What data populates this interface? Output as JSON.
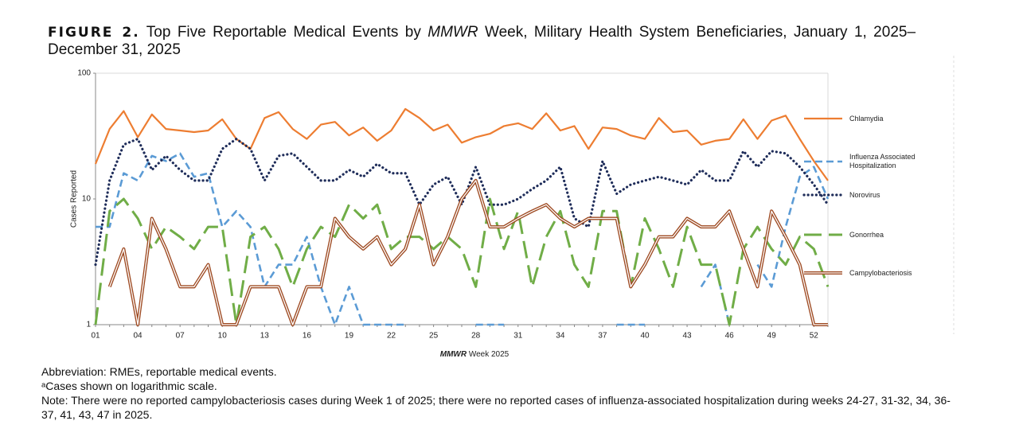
{
  "chart_data": {
    "type": "line",
    "title": [
      "FIGURE 2.",
      "Top Five Reportable Medical Events by ",
      "MMWR",
      " Week, Military Health System Beneficiaries, January 1, 2025– December 31, 2025"
    ],
    "x_label": [
      "MMWR",
      " Week  2025"
    ],
    "y_label": "Cases Reported",
    "categories": [
      "01",
      null,
      null,
      "04",
      null,
      null,
      "07",
      null,
      null,
      "10",
      null,
      null,
      "13",
      null,
      null,
      "16",
      null,
      null,
      "19",
      null,
      null,
      "22",
      null,
      null,
      "25",
      null,
      null,
      "28",
      null,
      null,
      "31",
      null,
      null,
      "34",
      null,
      null,
      "37",
      null,
      null,
      "40",
      null,
      null,
      "43",
      null,
      null,
      "46",
      null,
      null,
      "49",
      null,
      null,
      "52",
      null
    ],
    "ylim": [
      1,
      100
    ],
    "yticks": [
      1,
      10,
      100
    ],
    "log_scale": true,
    "grid": false,
    "legend": "right",
    "series": [
      {
        "name": "Chlamydia",
        "color": "#ed7d31",
        "style": "solid",
        "values": [
          19,
          36,
          50,
          31,
          47,
          36,
          35,
          34,
          35,
          43,
          30,
          25,
          44,
          49,
          36,
          30,
          39,
          41,
          32,
          37,
          29,
          35,
          52,
          44,
          35,
          39,
          28,
          31,
          33,
          38,
          40,
          36,
          48,
          35,
          38,
          25,
          37,
          36,
          32,
          30,
          44,
          34,
          35,
          27,
          29,
          30,
          43,
          30,
          42,
          46,
          30,
          20,
          14
        ]
      },
      {
        "name": "Influenza Associated Hospitalization",
        "color": "#5b9bd5",
        "style": "dashed",
        "values": [
          6,
          6,
          16,
          14,
          22,
          20,
          23,
          15,
          16,
          6,
          8,
          6,
          2,
          3,
          3,
          5,
          2,
          1,
          2,
          1,
          1,
          1,
          1,
          null,
          null,
          null,
          null,
          1,
          1,
          1,
          null,
          null,
          1,
          null,
          1,
          null,
          null,
          1,
          1,
          1,
          null,
          1,
          null,
          2,
          3,
          1,
          null,
          3,
          2,
          6,
          15,
          18,
          10
        ]
      },
      {
        "name": "Norovirus",
        "color": "#1f2d5a",
        "style": "dotted",
        "values": [
          3,
          14,
          27,
          30,
          17,
          22,
          17,
          14,
          14,
          25,
          30,
          25,
          14,
          22,
          23,
          18,
          14,
          14,
          17,
          15,
          19,
          16,
          16,
          9,
          13,
          15,
          9,
          18,
          9,
          9,
          10,
          12,
          14,
          18,
          7,
          6,
          20,
          11,
          13,
          14,
          15,
          14,
          13,
          17,
          14,
          14,
          24,
          18,
          24,
          23,
          18,
          13,
          9
        ]
      },
      {
        "name": "Gonorrhea",
        "color": "#70ad47",
        "style": "longdash",
        "values": [
          1,
          8,
          10,
          7,
          4,
          6,
          5,
          4,
          6,
          6,
          1,
          5,
          6,
          4,
          2,
          4,
          6,
          5,
          9,
          7,
          9,
          4,
          5,
          5,
          4,
          5,
          4,
          2,
          10,
          4,
          8,
          2,
          5,
          8,
          3,
          2,
          8,
          8,
          2,
          7,
          4,
          2,
          6,
          3,
          3,
          1,
          4,
          6,
          4,
          3,
          5,
          4,
          2
        ]
      },
      {
        "name": "Campylobacteriosis",
        "color": "#9e4a22",
        "style": "double",
        "values": [
          null,
          2,
          4,
          1,
          7,
          4,
          2,
          2,
          3,
          1,
          1,
          2,
          2,
          2,
          1,
          2,
          2,
          7,
          5,
          4,
          5,
          3,
          4,
          9,
          3,
          5,
          10,
          14,
          6,
          6,
          7,
          8,
          9,
          7,
          6,
          7,
          7,
          7,
          2,
          3,
          5,
          5,
          7,
          6,
          6,
          8,
          4,
          2,
          8,
          5,
          3,
          1,
          1
        ]
      }
    ]
  },
  "notes": [
    "Abbreviation: RMEs, reportable medical events.",
    "ᵃCases shown on logarithmic scale.",
    "Note: There were no reported campylobacteriosis cases during Week 1 of 2025; there were no reported cases of influenza-associated hospitalization during weeks 24-27, 31-32, 34, 36-37, 41, 43, 47 in 2025."
  ]
}
